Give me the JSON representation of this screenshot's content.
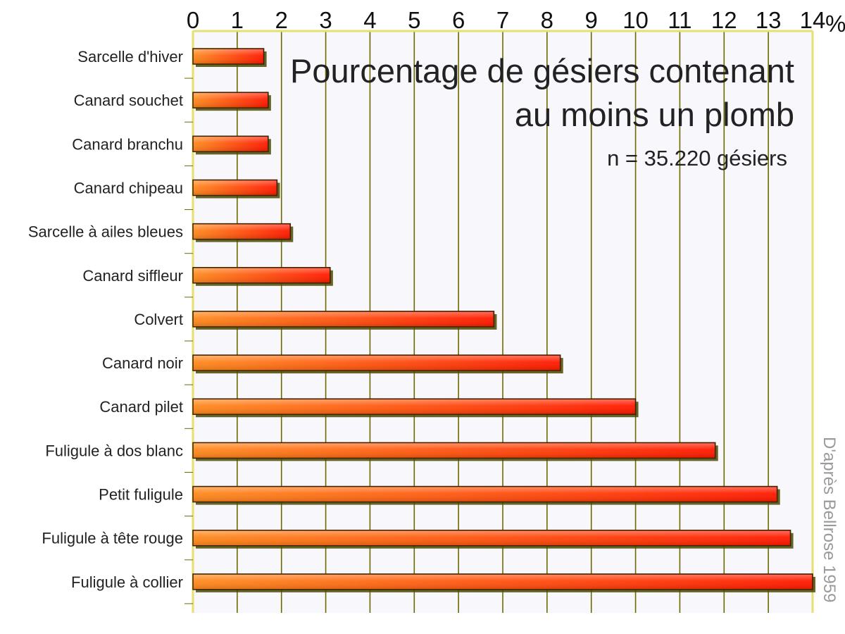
{
  "colors": {
    "plot_background": "#f7f7fc",
    "gridline": "#6e6a00",
    "frame": "#e6e070",
    "bar_start": "#ff8a1e",
    "bar_end": "#ff1a00",
    "bar_outline": "#3b2200",
    "bar_shadow": "#4a4a00"
  },
  "chart_data": {
    "type": "bar",
    "orientation": "horizontal",
    "title": "Pourcentage de gésiers contenant au moins un plomb",
    "title_lines": [
      "Pourcentage de gésiers contenant",
      "au moins un plomb"
    ],
    "subtitle": "n = 35.220 gésiers",
    "source": "D'après Bellrose 1959",
    "x_unit": "%",
    "xlim": [
      0,
      14
    ],
    "x_ticks": [
      "0",
      "1",
      "2",
      "3",
      "4",
      "5",
      "6",
      "7",
      "8",
      "9",
      "10",
      "11",
      "12",
      "13",
      "14"
    ],
    "grid": true,
    "categories": [
      "Sarcelle d'hiver",
      "Canard souchet",
      "Canard branchu",
      "Canard chipeau",
      "Sarcelle à ailes bleues",
      "Canard siffleur",
      "Colvert",
      "Canard noir",
      "Canard pilet",
      "Fuligule à dos blanc",
      "Petit fuligule",
      "Fuligule à tête rouge",
      "Fuligule à collier"
    ],
    "values": [
      1.6,
      1.7,
      1.7,
      1.9,
      2.2,
      3.1,
      6.8,
      8.3,
      10.0,
      11.8,
      13.2,
      13.5,
      14.0
    ]
  }
}
